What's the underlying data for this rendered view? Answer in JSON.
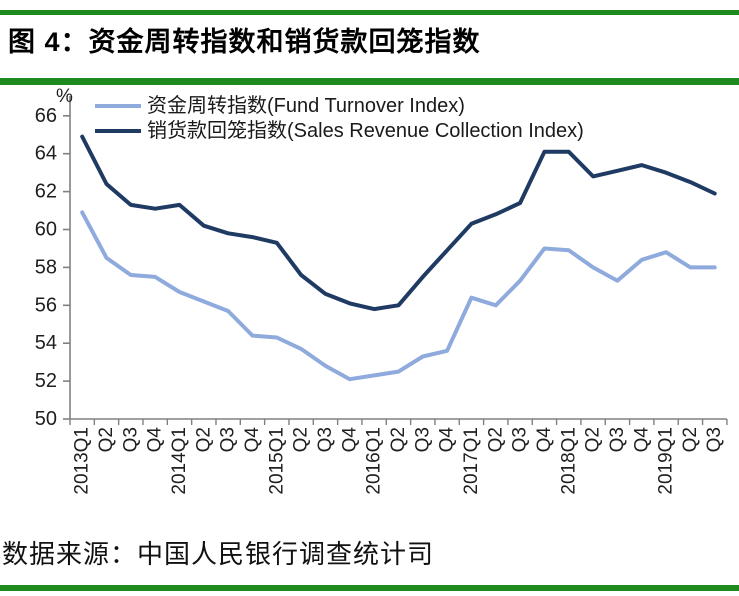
{
  "title": "图 4：资金周转指数和销货款回笼指数",
  "source_note": "数据来源：中国人民银行调查统计司",
  "colors": {
    "accent_green": "#1f8b1f",
    "fund_turnover_line": "#8faadc",
    "sales_collection_line": "#1f3a63",
    "axis_gray": "#808080",
    "label_text": "#1f1f1f"
  },
  "chart_data": {
    "type": "line",
    "unit_label": "%",
    "categories": [
      "2013Q1",
      "Q2",
      "Q3",
      "Q4",
      "2014Q1",
      "Q2",
      "Q3",
      "Q4",
      "2015Q1",
      "Q2",
      "Q3",
      "Q4",
      "2016Q1",
      "Q2",
      "Q3",
      "Q4",
      "2017Q1",
      "Q2",
      "Q3",
      "Q4",
      "2018Q1",
      "Q2",
      "Q3",
      "Q4",
      "2019Q1",
      "Q2",
      "Q3"
    ],
    "series": [
      {
        "name": "资金周转指数(Fund Turnover Index)",
        "color_key": "fund_turnover_line",
        "values": [
          60.9,
          58.5,
          57.6,
          57.5,
          56.7,
          56.2,
          55.7,
          54.4,
          54.3,
          53.7,
          52.8,
          52.1,
          52.3,
          52.5,
          53.3,
          53.6,
          56.4,
          56.0,
          57.3,
          59.0,
          58.9,
          58.0,
          57.3,
          58.4,
          58.8,
          58.0,
          58.0
        ]
      },
      {
        "name": "销货款回笼指数(Sales Revenue Collection Index)",
        "color_key": "sales_collection_line",
        "values": [
          64.9,
          62.4,
          61.3,
          61.1,
          61.3,
          60.2,
          59.8,
          59.6,
          59.3,
          57.6,
          56.6,
          56.1,
          55.8,
          56.0,
          57.5,
          58.9,
          60.3,
          60.8,
          61.4,
          64.1,
          64.1,
          62.8,
          63.1,
          63.4,
          63.0,
          62.5,
          61.9
        ]
      }
    ],
    "ylim": [
      50,
      66
    ],
    "y_ticks": [
      66,
      64,
      62,
      60,
      58,
      56,
      54,
      52,
      50
    ],
    "grid": false,
    "legend_position": "top-left"
  }
}
